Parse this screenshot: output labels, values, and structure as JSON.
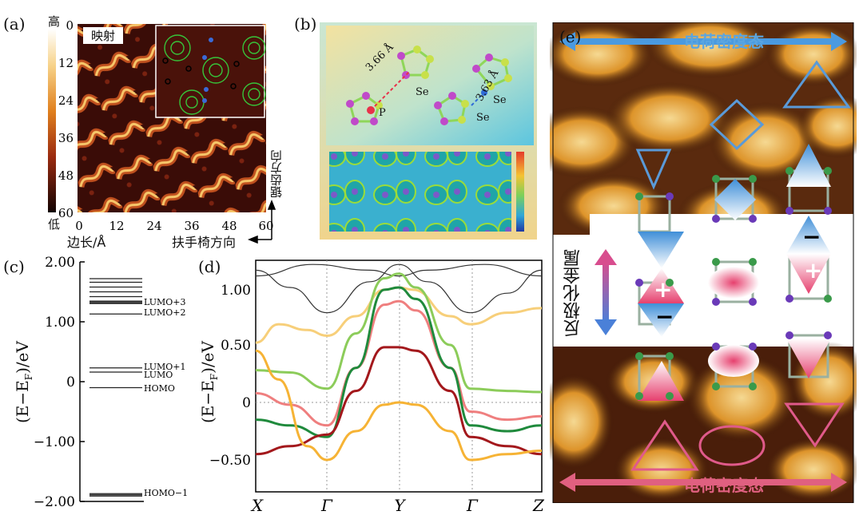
{
  "panel_a": {
    "label": "(a)",
    "inset_title": "映射",
    "colorbar_high": "高",
    "colorbar_low": "低",
    "y_ticks": [
      "0",
      "12",
      "24",
      "36",
      "48",
      "60"
    ],
    "x_ticks": [
      "0",
      "12",
      "24",
      "36",
      "48",
      "60"
    ],
    "xlabel": "边长/Å",
    "dir_armchair": "扶手椅方向",
    "dir_zigzag": "锯齿方向"
  },
  "panel_b": {
    "label": "(b)",
    "dist1": "3.66 Å",
    "dist2": "3.63 Å",
    "atom_p": "P",
    "atom_se1": "Se",
    "atom_se2": "Se",
    "atom_se3": "Se"
  },
  "panel_c": {
    "label": "(c)",
    "ylabel": "(E−E",
    "ylabel_sub": "F",
    "ylabel_end": ")/eV",
    "y_ticks": [
      "2.00",
      "1.00",
      "0",
      "−1.00",
      "−2.00"
    ],
    "level_labels": [
      "LUMO+3",
      "LUMO+2",
      "LUMO+1",
      "LUMO",
      "HOMO",
      "HOMO−1"
    ]
  },
  "panel_d": {
    "label": "(d)",
    "ylabel": "(E−E",
    "ylabel_sub": "F",
    "ylabel_end": ")/eV",
    "y_ticks": [
      "1.00",
      "0.50",
      "0",
      "−0.50"
    ],
    "k_labels": [
      "X",
      "Γ",
      "Y",
      "Γ",
      "Z"
    ]
  },
  "panel_e": {
    "label": "(e)",
    "top_label": "电荷密度态",
    "bottom_label": "电荷密度态",
    "side_label": "反极化金属",
    "plus": "+",
    "minus": "−"
  },
  "colors": {
    "stm_dark": "#2a0a06",
    "stm_mid": "#b8461c",
    "stm_bright": "#f7c76a",
    "band_gray": "#333333",
    "band_green_light": "#8ccc5a",
    "band_green_dark": "#1f8a3c",
    "band_pink": "#ef7f7f",
    "band_red_dark": "#a3181c",
    "band_yellow": "#f6b335",
    "band_yellow_light": "#f7cf7a",
    "blue_arrow": "#5aa5e0",
    "pink_arrow": "#e0607e"
  }
}
